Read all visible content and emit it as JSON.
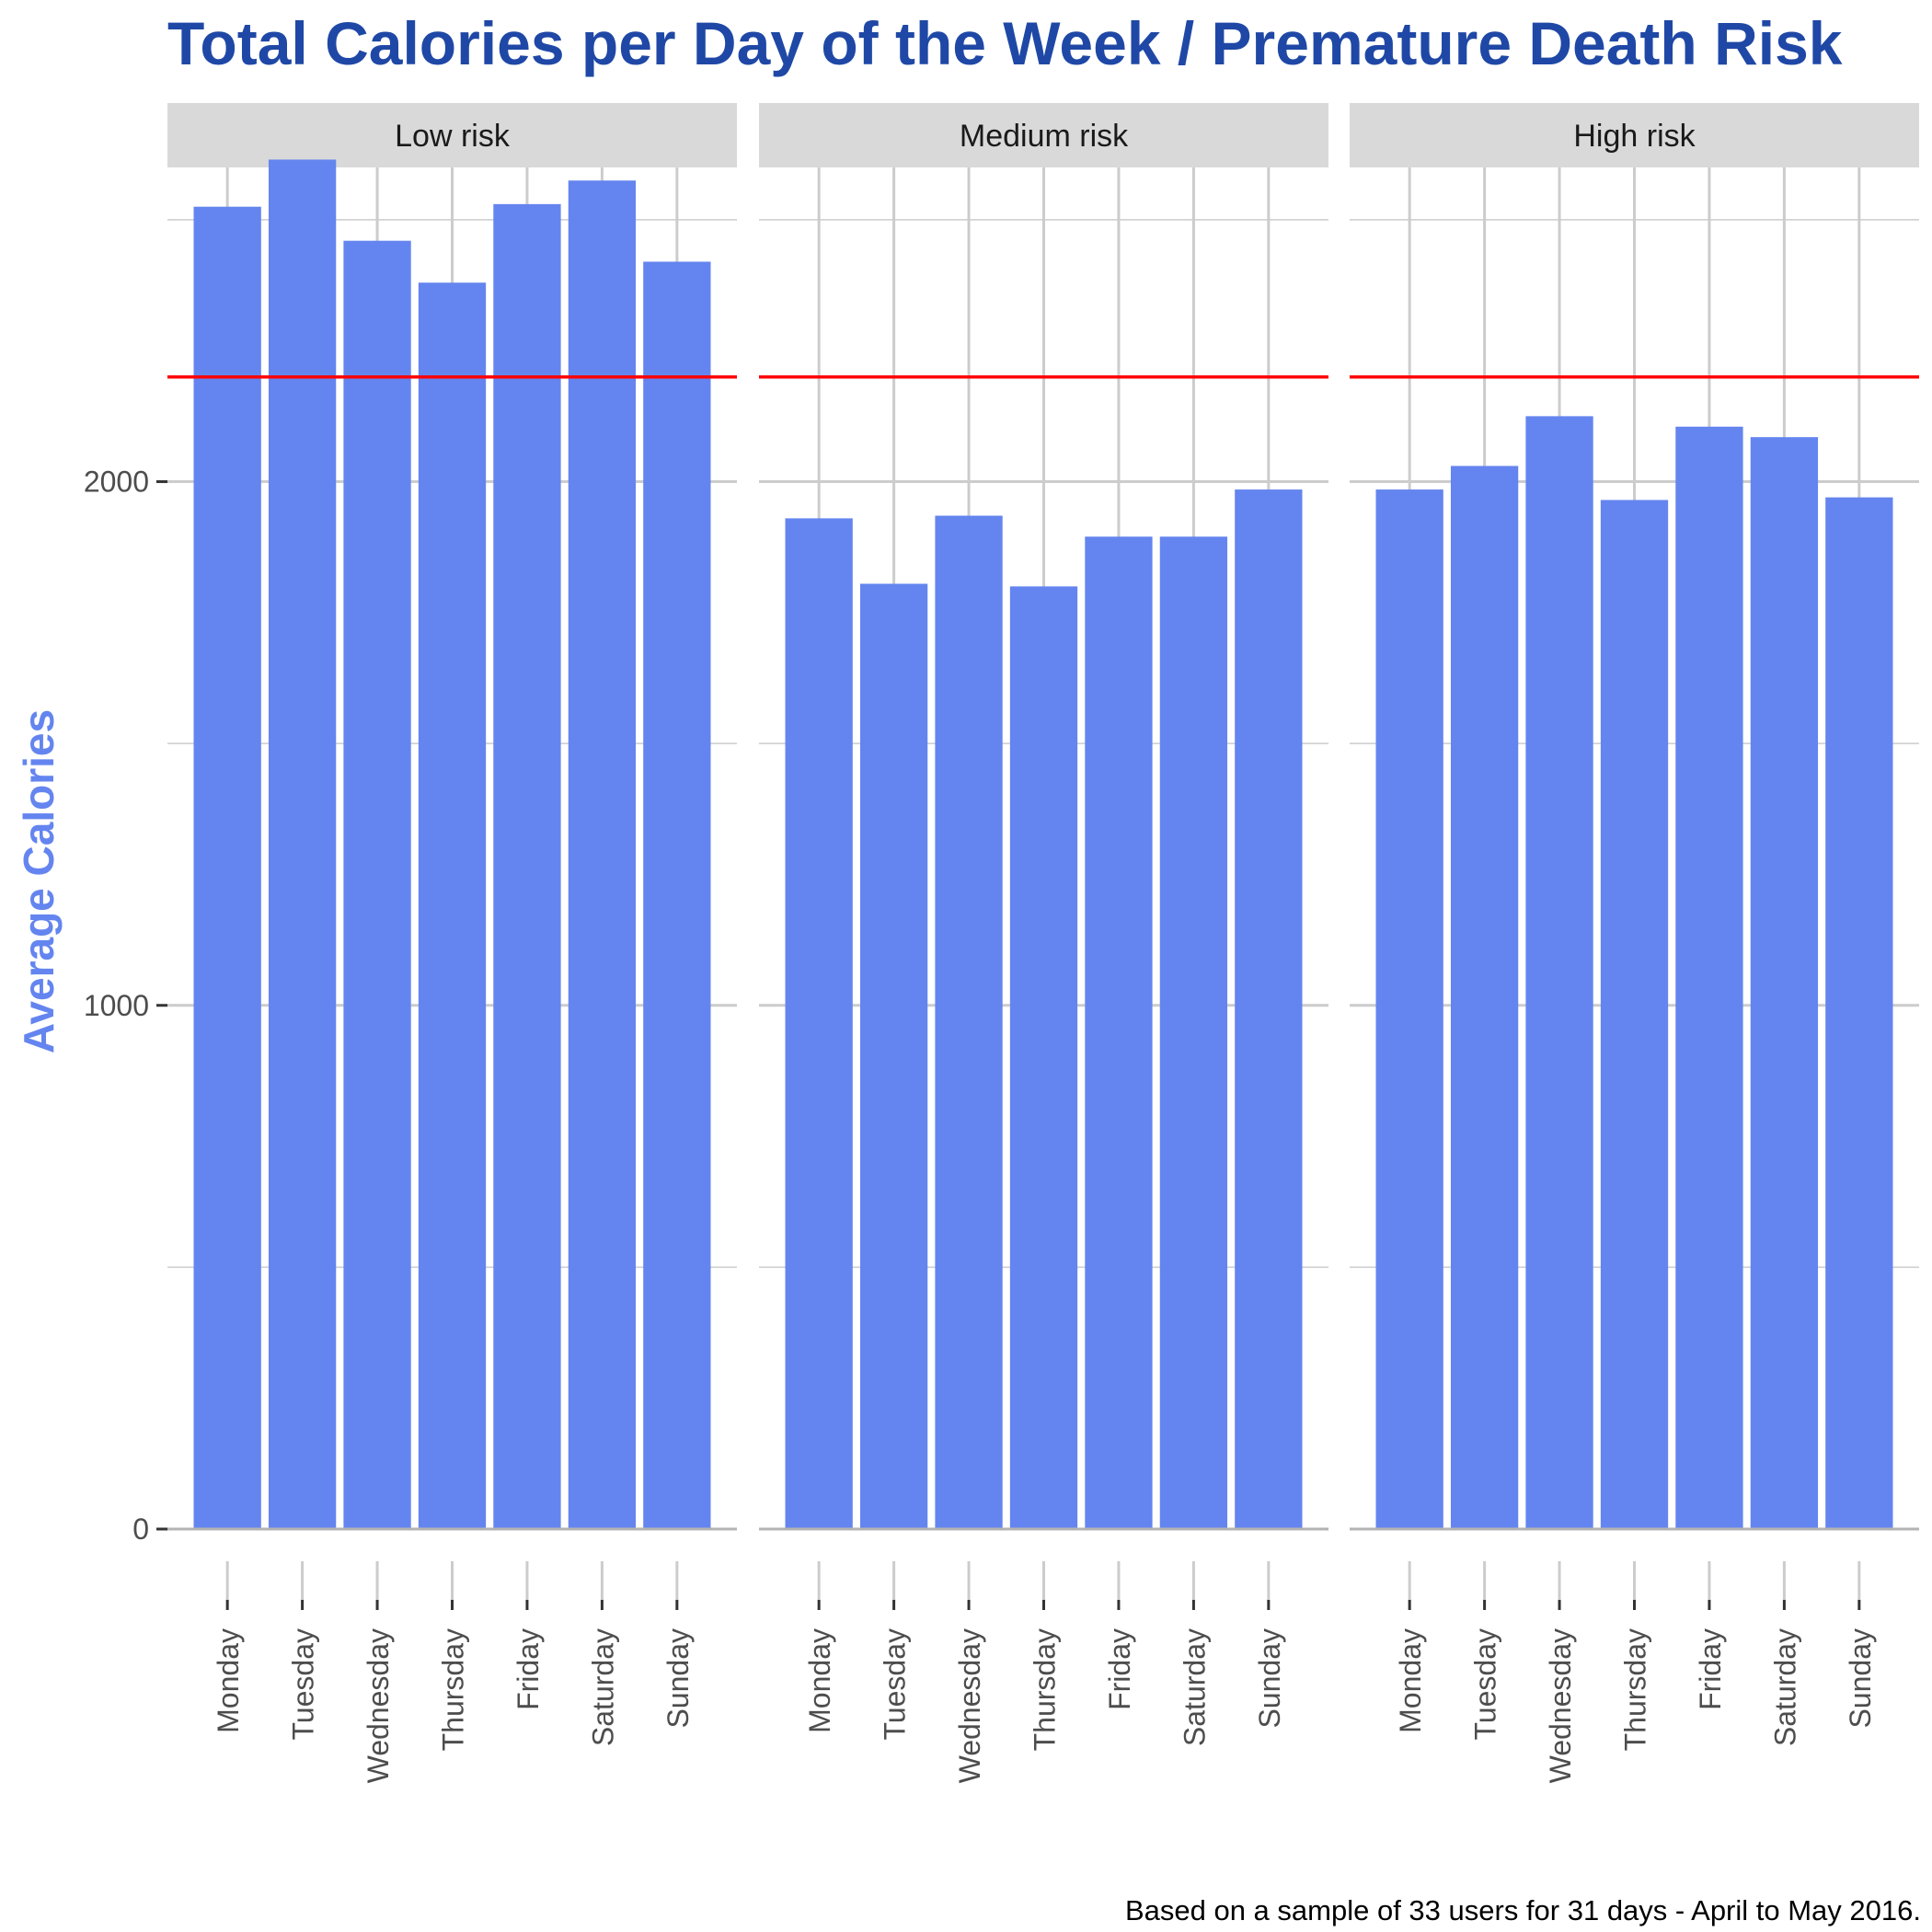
{
  "chart_data": {
    "type": "bar",
    "title": "Total Calories per Day of the Week / Premature Death Risk",
    "ylabel": "Average Calories",
    "xlabel": "",
    "caption": "Based on a sample of 33 users for 31 days - April to May 2016.",
    "categories": [
      "Monday",
      "Tuesday",
      "Wednesday",
      "Thursday",
      "Friday",
      "Saturday",
      "Sunday"
    ],
    "ylim": [
      0,
      2600
    ],
    "yticks": [
      0,
      1000,
      2000
    ],
    "reference_line": 2200,
    "panels": [
      {
        "name": "Low risk",
        "values": [
          2525,
          2615,
          2460,
          2380,
          2530,
          2575,
          2420
        ]
      },
      {
        "name": "Medium risk",
        "values": [
          1930,
          1805,
          1935,
          1800,
          1895,
          1895,
          1985
        ]
      },
      {
        "name": "High risk",
        "values": [
          1985,
          2030,
          2125,
          1965,
          2105,
          2085,
          1970
        ]
      }
    ],
    "grid": true,
    "colors": {
      "bar": "#6485ef",
      "reference_line": "#ff0000",
      "title": "#1f48a6",
      "ylabel": "#6485ef",
      "strip": "#d9d9d9",
      "grid": "#cccccc"
    }
  }
}
